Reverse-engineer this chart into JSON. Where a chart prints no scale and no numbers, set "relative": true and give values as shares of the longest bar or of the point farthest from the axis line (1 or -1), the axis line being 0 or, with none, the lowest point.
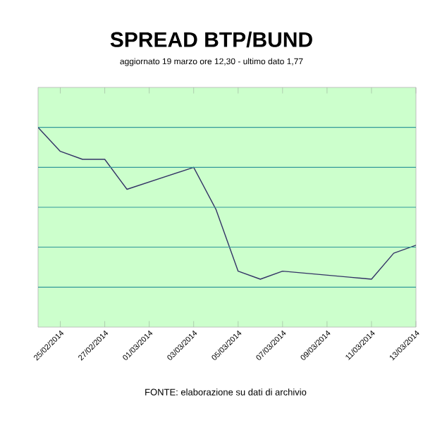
{
  "chart_data": {
    "type": "line",
    "title": "SPREAD BTP/BUND",
    "subtitle": "aggiornato 19 marzo ore 12,30 - ultimo dato 1,77",
    "relative": true,
    "x": [
      "2014-02-24",
      "2014-02-25",
      "2014-02-26",
      "2014-02-27",
      "2014-02-28",
      "2014-03-03",
      "2014-03-04",
      "2014-03-05",
      "2014-03-06",
      "2014-03-07",
      "2014-03-10",
      "2014-03-11",
      "2014-03-12",
      "2014-03-13"
    ],
    "values": [
      1.0,
      0.88,
      0.84,
      0.84,
      0.69,
      0.8,
      0.59,
      0.28,
      0.24,
      0.28,
      0.25,
      0.24,
      0.37,
      0.41
    ],
    "color": "#333366",
    "xlim": [
      "2014-02-24",
      "2014-03-13"
    ],
    "xticks": [
      {
        "value": "2014-02-25",
        "label": "25/02/2014"
      },
      {
        "value": "2014-02-27",
        "label": "27/02/2014"
      },
      {
        "value": "2014-03-01",
        "label": "01/03/2014"
      },
      {
        "value": "2014-03-03",
        "label": "03/03/2014"
      },
      {
        "value": "2014-03-05",
        "label": "05/03/2014"
      },
      {
        "value": "2014-03-07",
        "label": "07/03/2014"
      },
      {
        "value": "2014-03-09",
        "label": "09/03/2014"
      },
      {
        "value": "2014-03-11",
        "label": "11/03/2014"
      },
      {
        "value": "2014-03-13",
        "label": "13/03/2014"
      }
    ],
    "ref_lines": [
      {
        "axis": "y",
        "value": 0.2,
        "color": "#339999"
      },
      {
        "axis": "y",
        "value": 0.4,
        "color": "#339999"
      },
      {
        "axis": "y",
        "value": 0.6,
        "color": "#339999"
      },
      {
        "axis": "y",
        "value": 0.8,
        "color": "#339999"
      },
      {
        "axis": "y",
        "value": 1.0,
        "color": "#339999"
      }
    ],
    "annotations": [
      "FONTE: elaborazione su dati di archivio"
    ]
  }
}
